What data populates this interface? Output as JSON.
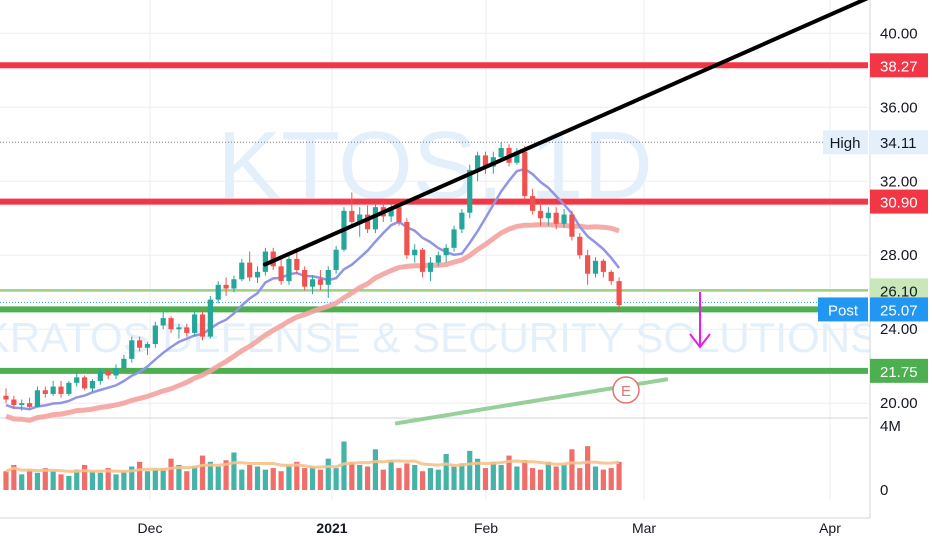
{
  "chart_data": {
    "type": "candlestick",
    "symbol": "KTOS",
    "interval": "1D",
    "watermark_title": "KTOS, 1D",
    "watermark_subtitle": "KRATOS DEFENSE & SECURITY SOLUTIONS",
    "y_axis": {
      "ticks": [
        "40.00",
        "36.00",
        "32.00",
        "28.00",
        "24.00",
        "20.00"
      ],
      "tick_values": [
        40,
        36,
        32,
        28,
        24,
        20
      ],
      "range": [
        19.2,
        41.8
      ]
    },
    "x_axis": {
      "labels": [
        "Dec",
        "2021",
        "Feb",
        "Mar",
        "Apr"
      ]
    },
    "volume_axis": {
      "ticks": [
        "4M",
        "0"
      ],
      "tick_values": [
        4,
        0
      ],
      "unit": "M"
    },
    "horizontal_levels": [
      {
        "name": "resistance-high",
        "value": 38.27,
        "label": "38.27",
        "color": "#f23645"
      },
      {
        "name": "resistance",
        "value": 30.9,
        "label": "30.90",
        "color": "#f23645"
      },
      {
        "name": "support-upper",
        "value": 26.1,
        "label": "26.10",
        "color": "#9ccf80"
      },
      {
        "name": "support",
        "value": 25.07,
        "color": "#4caf50"
      },
      {
        "name": "support-low",
        "value": 21.75,
        "label": "21.75",
        "color": "#4caf50"
      }
    ],
    "high_marker": {
      "label": "High",
      "value": "34.11",
      "price": 34.11
    },
    "post_marker": {
      "label": "Post",
      "value": "25.07",
      "price": 25.07
    },
    "earnings_marker": {
      "label": "E"
    },
    "trendline": {
      "from": [
        265,
        27.5
      ],
      "to": [
        868,
        41.8
      ]
    },
    "candles": [
      [
        20.4,
        20.8,
        20.0,
        20.2
      ],
      [
        20.2,
        20.4,
        19.7,
        19.9
      ],
      [
        19.9,
        20.2,
        19.6,
        20.0
      ],
      [
        20.0,
        20.3,
        19.7,
        19.8
      ],
      [
        19.8,
        20.9,
        19.8,
        20.7
      ],
      [
        20.7,
        20.9,
        20.3,
        20.5
      ],
      [
        20.5,
        21.2,
        20.4,
        20.9
      ],
      [
        20.9,
        21.2,
        20.3,
        20.5
      ],
      [
        20.5,
        21.2,
        20.4,
        21.1
      ],
      [
        21.1,
        21.7,
        20.9,
        21.4
      ],
      [
        21.4,
        21.5,
        20.7,
        20.8
      ],
      [
        20.8,
        21.3,
        20.6,
        21.2
      ],
      [
        21.2,
        21.9,
        21.0,
        21.7
      ],
      [
        21.7,
        21.8,
        21.3,
        21.5
      ],
      [
        21.5,
        22.1,
        21.3,
        21.9
      ],
      [
        21.9,
        22.6,
        21.8,
        22.4
      ],
      [
        22.4,
        23.6,
        22.2,
        23.4
      ],
      [
        23.4,
        23.6,
        22.8,
        23.0
      ],
      [
        23.0,
        23.3,
        22.6,
        23.2
      ],
      [
        23.2,
        24.4,
        23.0,
        24.2
      ],
      [
        24.2,
        25.0,
        24.0,
        24.6
      ],
      [
        24.6,
        24.7,
        23.8,
        24.0
      ],
      [
        24.0,
        24.3,
        23.5,
        24.1
      ],
      [
        24.1,
        24.3,
        23.6,
        23.8
      ],
      [
        23.8,
        25.0,
        23.6,
        24.8
      ],
      [
        24.8,
        25.0,
        23.4,
        23.6
      ],
      [
        23.6,
        25.8,
        23.5,
        25.6
      ],
      [
        25.6,
        26.6,
        25.4,
        26.4
      ],
      [
        26.4,
        26.8,
        25.8,
        26.2
      ],
      [
        26.2,
        26.9,
        26.0,
        26.7
      ],
      [
        26.7,
        27.8,
        26.6,
        27.6
      ],
      [
        27.6,
        28.2,
        26.6,
        26.8
      ],
      [
        26.8,
        27.4,
        26.5,
        27.1
      ],
      [
        27.1,
        28.4,
        26.9,
        28.2
      ],
      [
        28.2,
        28.4,
        27.2,
        27.4
      ],
      [
        27.4,
        27.9,
        26.4,
        26.6
      ],
      [
        26.6,
        28.0,
        26.4,
        27.8
      ],
      [
        27.8,
        28.4,
        27.0,
        27.2
      ],
      [
        27.2,
        27.4,
        26.1,
        26.3
      ],
      [
        26.3,
        26.9,
        25.9,
        26.7
      ],
      [
        26.7,
        27.2,
        26.1,
        26.4
      ],
      [
        26.4,
        27.4,
        25.7,
        27.2
      ],
      [
        27.2,
        28.5,
        27.0,
        28.3
      ],
      [
        28.3,
        30.6,
        28.2,
        30.4
      ],
      [
        30.4,
        31.4,
        29.6,
        29.8
      ],
      [
        29.8,
        30.6,
        29.0,
        30.2
      ],
      [
        30.2,
        30.7,
        29.2,
        29.4
      ],
      [
        29.4,
        30.8,
        29.2,
        30.6
      ],
      [
        30.6,
        30.9,
        29.8,
        30.1
      ],
      [
        30.1,
        30.8,
        29.8,
        30.6
      ],
      [
        30.6,
        30.7,
        29.6,
        29.8
      ],
      [
        29.8,
        30.0,
        27.8,
        28.0
      ],
      [
        28.0,
        28.6,
        27.6,
        28.3
      ],
      [
        28.3,
        28.4,
        26.8,
        27.1
      ],
      [
        27.1,
        27.9,
        26.6,
        27.6
      ],
      [
        27.6,
        28.2,
        27.4,
        28.0
      ],
      [
        28.0,
        28.6,
        27.6,
        28.4
      ],
      [
        28.4,
        29.6,
        28.2,
        29.4
      ],
      [
        29.4,
        30.5,
        29.2,
        30.3
      ],
      [
        30.3,
        32.9,
        30.0,
        32.6
      ],
      [
        32.6,
        33.6,
        32.0,
        33.4
      ],
      [
        33.4,
        33.6,
        32.4,
        32.8
      ],
      [
        32.8,
        33.6,
        32.4,
        33.3
      ],
      [
        33.3,
        34.11,
        33.1,
        33.8
      ],
      [
        33.8,
        34.0,
        32.8,
        33.0
      ],
      [
        33.0,
        33.8,
        32.9,
        33.6
      ],
      [
        33.6,
        33.9,
        31.0,
        31.2
      ],
      [
        31.2,
        31.6,
        30.2,
        30.4
      ],
      [
        30.4,
        30.9,
        29.6,
        30.0
      ],
      [
        30.0,
        30.6,
        29.6,
        30.3
      ],
      [
        30.3,
        30.6,
        29.4,
        29.7
      ],
      [
        29.7,
        30.5,
        29.5,
        30.2
      ],
      [
        30.2,
        30.4,
        28.8,
        29.0
      ],
      [
        29.0,
        29.2,
        27.8,
        28.0
      ],
      [
        28.0,
        28.3,
        26.4,
        27.0
      ],
      [
        27.0,
        27.9,
        26.8,
        27.7
      ],
      [
        27.7,
        27.8,
        26.8,
        27.1
      ],
      [
        27.1,
        27.2,
        26.4,
        26.6
      ],
      [
        26.6,
        26.8,
        25.0,
        25.3
      ]
    ],
    "volume": [
      1.2,
      1.6,
      1.0,
      1.3,
      1.1,
      1.4,
      1.2,
      1.0,
      0.9,
      1.3,
      1.6,
      1.2,
      1.1,
      1.4,
      1.0,
      1.2,
      1.5,
      1.8,
      1.2,
      1.3,
      1.4,
      2.0,
      1.6,
      1.2,
      1.5,
      2.2,
      1.8,
      1.5,
      1.9,
      2.4,
      1.3,
      1.6,
      1.5,
      1.3,
      1.4,
      1.2,
      1.6,
      1.8,
      1.4,
      1.5,
      1.3,
      2.0,
      1.4,
      3.1,
      1.8,
      1.6,
      1.5,
      2.6,
      1.3,
      1.9,
      1.4,
      1.7,
      1.6,
      1.2,
      1.4,
      1.3,
      2.3,
      1.5,
      1.7,
      2.5,
      2.0,
      1.4,
      1.8,
      1.6,
      2.2,
      1.5,
      1.9,
      1.4,
      1.3,
      1.8,
      1.5,
      1.6,
      2.6,
      1.4,
      2.8,
      1.5,
      1.3,
      1.4,
      1.8
    ],
    "volume_colors_up_down": true
  },
  "colors": {
    "up": "#26a69a",
    "down": "#ef5350",
    "ma_fast": "#9294e5",
    "ma_mid": "#f4a3a0",
    "ma_slow": "#88c788",
    "grid": "#eceef2",
    "post_bg": "#2196f3",
    "arrow": "#e91ee3"
  }
}
